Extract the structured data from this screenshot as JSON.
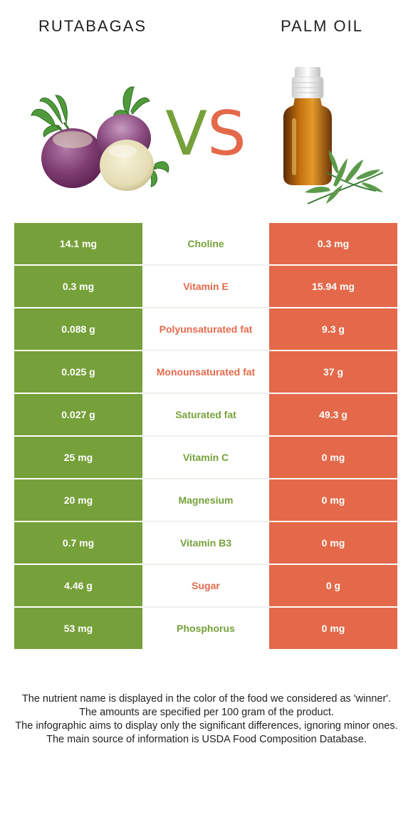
{
  "left_food": {
    "name": "RUTABAGAS",
    "image_icon": "rutabaga-image"
  },
  "right_food": {
    "name": "PALM OIL",
    "image_icon": "oil-bottle-image"
  },
  "vs": {
    "v": "V",
    "s": "S"
  },
  "colors": {
    "left": "#76a13a",
    "right": "#e4694a"
  },
  "rows": [
    {
      "left": "14.1 mg",
      "nutrient": "Choline",
      "right": "0.3 mg",
      "winner": "left"
    },
    {
      "left": "0.3 mg",
      "nutrient": "Vitamin E",
      "right": "15.94 mg",
      "winner": "right"
    },
    {
      "left": "0.088 g",
      "nutrient": "Polyunsaturated fat",
      "right": "9.3 g",
      "winner": "right"
    },
    {
      "left": "0.025 g",
      "nutrient": "Monounsaturated fat",
      "right": "37 g",
      "winner": "right"
    },
    {
      "left": "0.027 g",
      "nutrient": "Saturated fat",
      "right": "49.3 g",
      "winner": "left"
    },
    {
      "left": "25 mg",
      "nutrient": "Vitamin C",
      "right": "0 mg",
      "winner": "left"
    },
    {
      "left": "20 mg",
      "nutrient": "Magnesium",
      "right": "0 mg",
      "winner": "left"
    },
    {
      "left": "0.7 mg",
      "nutrient": "Vitamin B3",
      "right": "0 mg",
      "winner": "left"
    },
    {
      "left": "4.46 g",
      "nutrient": "Sugar",
      "right": "0 g",
      "winner": "right"
    },
    {
      "left": "53 mg",
      "nutrient": "Phosphorus",
      "right": "0 mg",
      "winner": "left"
    }
  ],
  "notes": [
    "The nutrient name is displayed in the color of the food we considered as 'winner'.",
    "The amounts are specified per 100 gram of the product.",
    "The infographic aims to display only the significant differences, ignoring minor ones.",
    "The main source of information is USDA Food Composition Database."
  ]
}
